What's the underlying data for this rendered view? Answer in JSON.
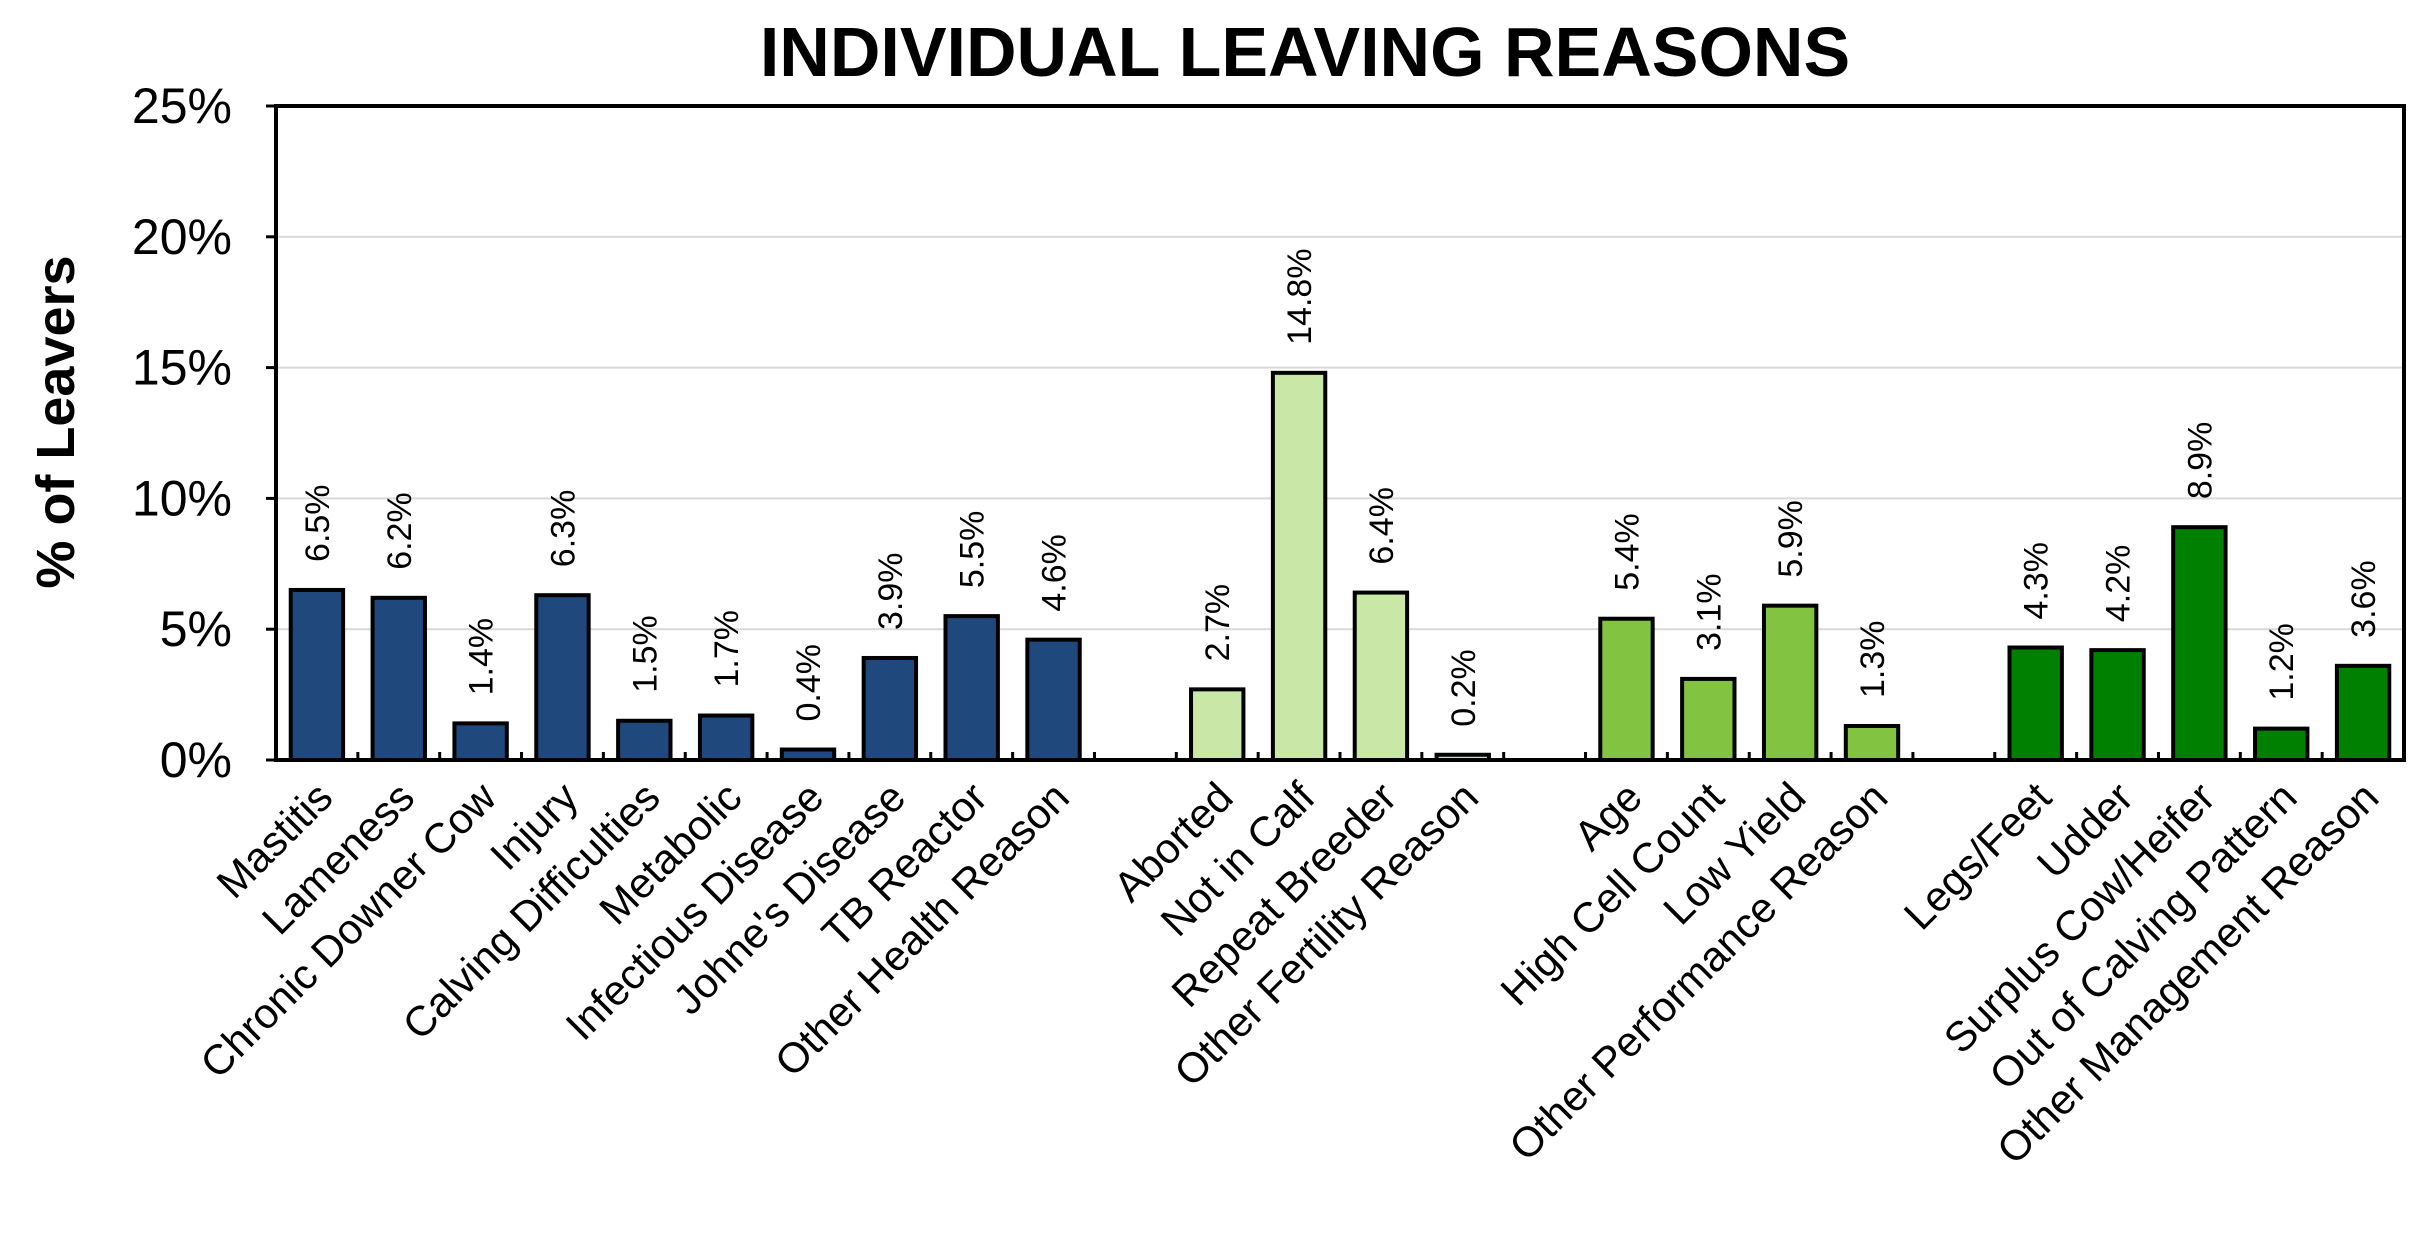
{
  "chart_data": {
    "type": "bar",
    "title": "INDIVIDUAL LEAVING REASONS",
    "xlabel": "",
    "ylabel": "% of Leavers",
    "ylim": [
      0,
      25
    ],
    "yticks": [
      "0%",
      "5%",
      "10%",
      "15%",
      "20%",
      "25%"
    ],
    "grid": true,
    "legend": "none",
    "groups": [
      {
        "color": "#1f497d",
        "categories": [
          "Mastitis",
          "Lameness",
          "Chronic Downer Cow",
          "Injury",
          "Calving Difficulties",
          "Metabolic",
          "Infectious Disease",
          "Johne's Disease",
          "TB Reactor",
          "Other Health Reason"
        ],
        "values": [
          6.5,
          6.2,
          1.4,
          6.3,
          1.5,
          1.7,
          0.4,
          3.9,
          5.5,
          4.6
        ],
        "labels": [
          "6.5%",
          "6.2%",
          "1.4%",
          "6.3%",
          "1.5%",
          "1.7%",
          "0.4%",
          "3.9%",
          "5.5%",
          "4.6%"
        ]
      },
      {
        "color": "#c9e8a8",
        "categories": [
          "Aborted",
          "Not in Calf",
          "Repeat Breeder",
          "Other Fertility Reason"
        ],
        "values": [
          2.7,
          14.8,
          6.4,
          0.2
        ],
        "labels": [
          "2.7%",
          "14.8%",
          "6.4%",
          "0.2%"
        ]
      },
      {
        "color": "#82c341",
        "categories": [
          "Age",
          "High Cell Count",
          "Low Yield",
          "Other Performance Reason"
        ],
        "values": [
          5.4,
          3.1,
          5.9,
          1.3
        ],
        "labels": [
          "5.4%",
          "3.1%",
          "5.9%",
          "1.3%"
        ]
      },
      {
        "color": "#008000",
        "categories": [
          "Legs/Feet",
          "Udder",
          "Surplus Cow/Heifer",
          "Out of Calving Pattern",
          "Other Management Reason"
        ],
        "values": [
          4.3,
          4.2,
          8.9,
          1.2,
          3.6
        ],
        "labels": [
          "4.3%",
          "4.2%",
          "8.9%",
          "1.2%",
          "3.6%"
        ]
      }
    ]
  }
}
